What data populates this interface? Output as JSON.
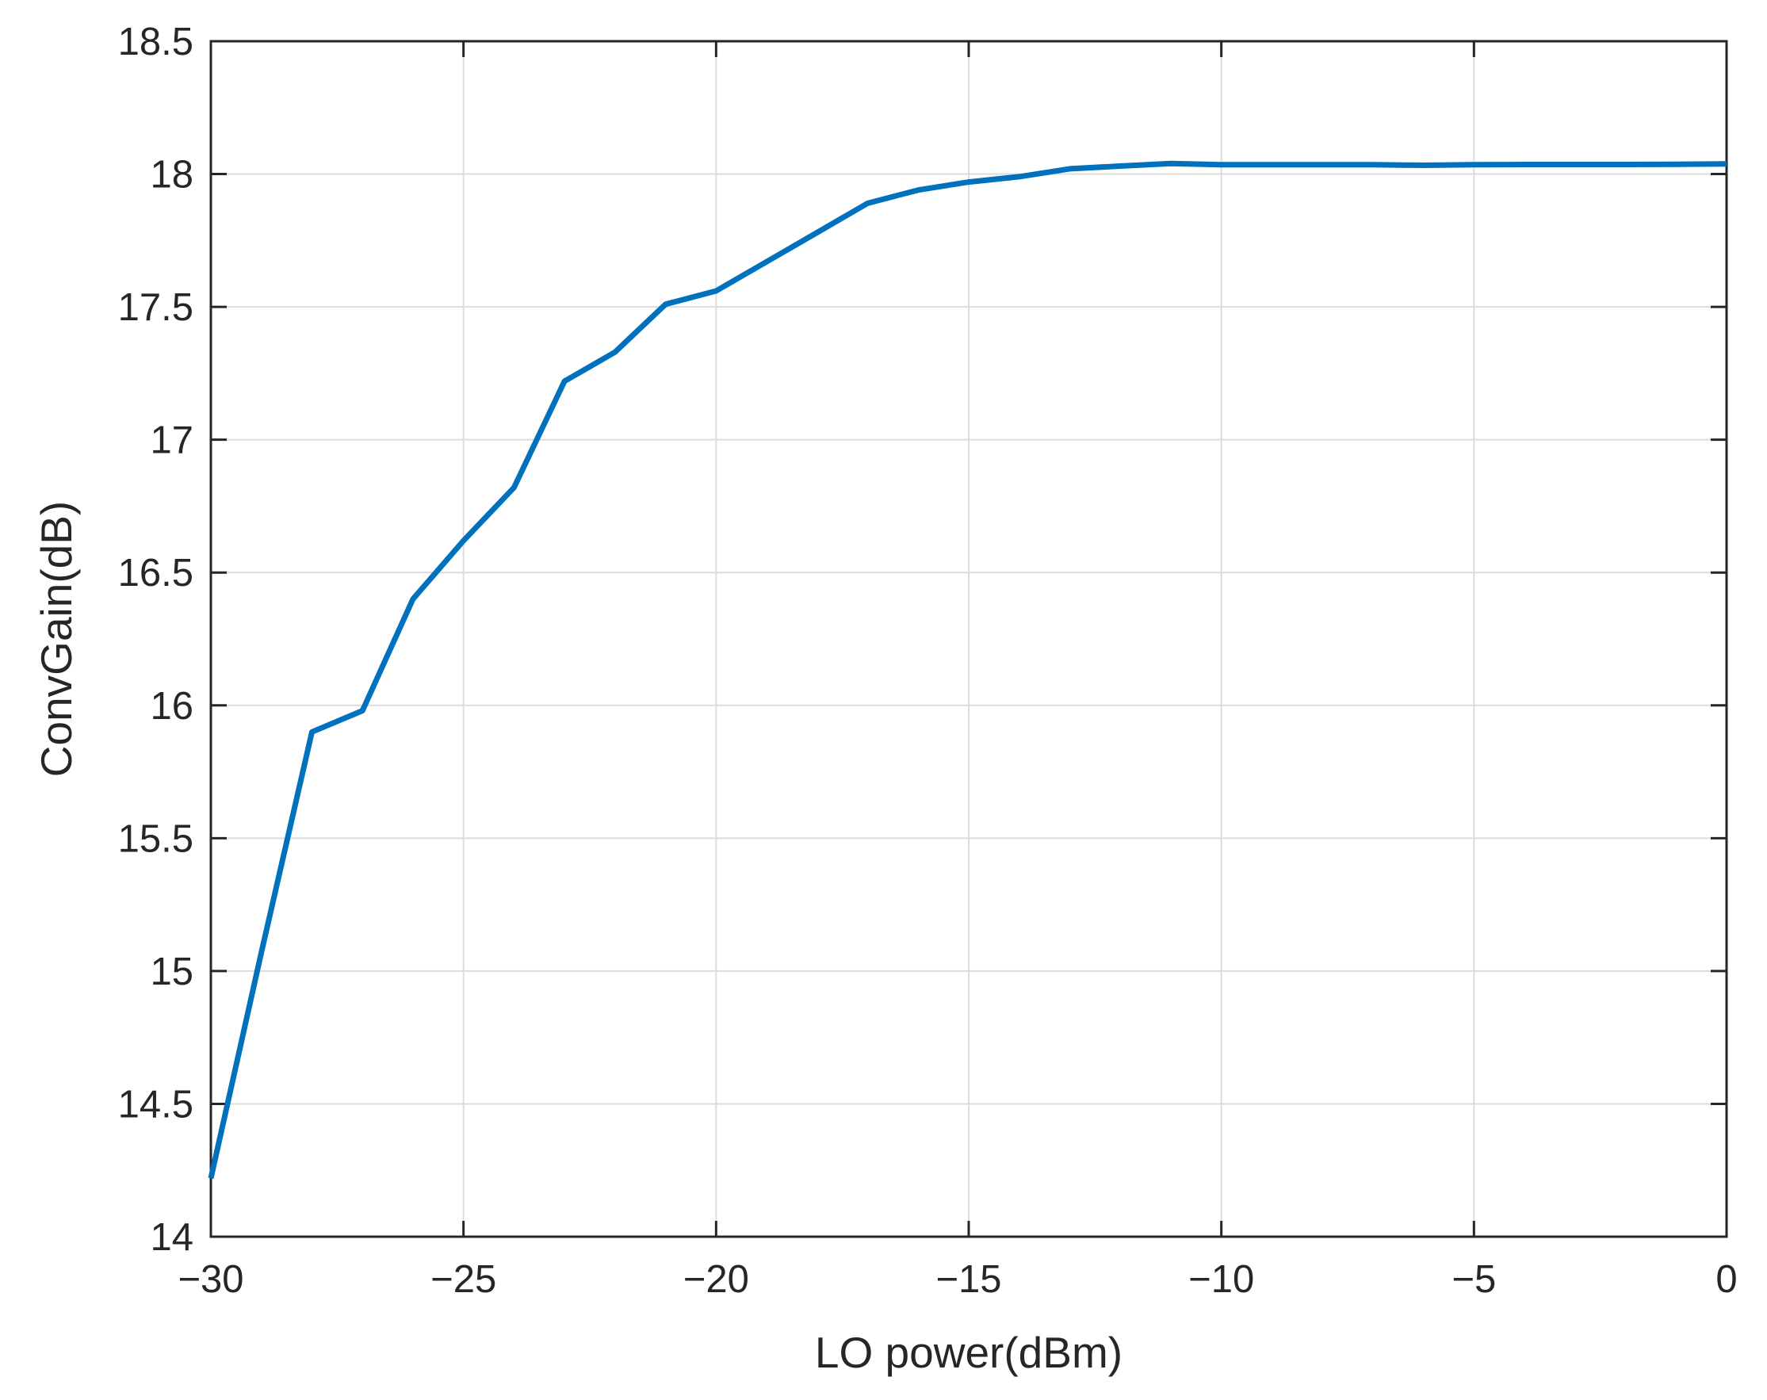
{
  "chart_data": {
    "type": "line",
    "title": "",
    "xlabel": "LO power(dBm)",
    "ylabel": "ConvGain(dB)",
    "xlim": [
      -30,
      0
    ],
    "ylim": [
      14,
      18.5
    ],
    "grid": true,
    "x_ticks": [
      -30,
      -25,
      -20,
      -15,
      -10,
      -5,
      0
    ],
    "x_tick_labels": [
      "−30",
      "−25",
      "−20",
      "−15",
      "−10",
      "−5",
      "0"
    ],
    "y_ticks": [
      14,
      14.5,
      15,
      15.5,
      16,
      16.5,
      17,
      17.5,
      18,
      18.5
    ],
    "y_tick_labels": [
      "14",
      "14.5",
      "15",
      "15.5",
      "16",
      "16.5",
      "17",
      "17.5",
      "18",
      "18.5"
    ],
    "series": [
      {
        "color": "#0072BD",
        "x": [
          -30,
          -29,
          -28,
          -27,
          -26,
          -25,
          -24,
          -23,
          -22,
          -21,
          -20,
          -19,
          -18,
          -17,
          -16,
          -15,
          -14,
          -13,
          -12,
          -11,
          -10,
          -9,
          -8,
          -7,
          -6,
          -5,
          -4,
          -3,
          -2,
          -1,
          0
        ],
        "y": [
          14.22,
          15.07,
          15.9,
          15.98,
          16.4,
          16.62,
          16.82,
          17.22,
          17.33,
          17.51,
          17.56,
          17.67,
          17.78,
          17.89,
          17.94,
          17.97,
          17.99,
          18.02,
          18.03,
          18.04,
          18.035,
          18.035,
          18.035,
          18.035,
          18.033,
          18.035,
          18.036,
          18.036,
          18.036,
          18.037,
          18.038
        ]
      }
    ]
  }
}
